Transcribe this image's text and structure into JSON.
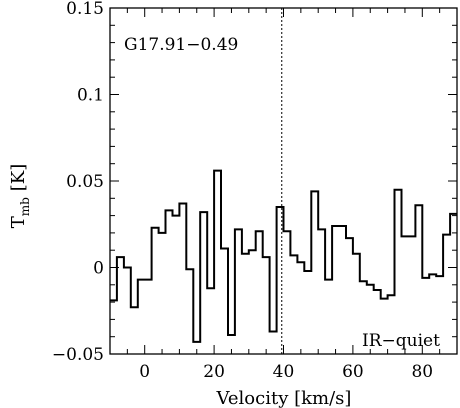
{
  "chart_data": {
    "type": "line",
    "step": true,
    "source_label": "G17.91−0.49",
    "class_label": "IR−quiet",
    "xlabel": "Velocity [km/s]",
    "ylabel_main": "T",
    "ylabel_sub": "mb",
    "ylabel_unit": "[K]",
    "xlim": [
      -10,
      90
    ],
    "ylim": [
      -0.05,
      0.15
    ],
    "x_ticks": [
      0,
      20,
      40,
      60,
      80
    ],
    "x_tick_labels": [
      "0",
      "20",
      "40",
      "60",
      "80"
    ],
    "y_ticks": [
      -0.05,
      0,
      0.05,
      0.1,
      0.15
    ],
    "y_tick_labels": [
      "−0.05",
      "0",
      "0.05",
      "0.1",
      "0.15"
    ],
    "reference_velocity": 39.5,
    "x": [
      -9.0,
      -7.0,
      -5.0,
      -3.0,
      -1.0,
      1.0,
      3.0,
      5.0,
      7.0,
      9.0,
      11.0,
      13.0,
      15.0,
      17.0,
      19.0,
      21.0,
      23.0,
      25.0,
      27.0,
      29.0,
      31.0,
      33.0,
      35.0,
      37.0,
      39.0,
      41.0,
      43.0,
      45.0,
      47.0,
      49.0,
      51.0,
      53.0,
      55.0,
      57.0,
      59.0,
      61.0,
      63.0,
      65.0,
      67.0,
      69.0,
      71.0,
      73.0,
      75.0,
      77.0,
      79.0,
      81.0,
      83.0,
      85.0,
      87.0,
      89.0
    ],
    "y": [
      -0.019,
      0.006,
      0.0,
      -0.023,
      -0.007,
      -0.007,
      0.023,
      0.02,
      0.033,
      0.03,
      0.037,
      -0.001,
      -0.043,
      0.032,
      -0.012,
      0.056,
      0.011,
      -0.039,
      0.022,
      0.008,
      0.01,
      0.021,
      0.006,
      -0.037,
      0.035,
      0.021,
      0.007,
      0.003,
      -0.002,
      0.044,
      0.022,
      -0.007,
      0.024,
      0.024,
      0.017,
      0.008,
      -0.008,
      -0.01,
      -0.013,
      -0.018,
      -0.016,
      0.045,
      0.018,
      0.018,
      0.036,
      -0.006,
      -0.004,
      -0.005,
      0.019,
      0.031
    ]
  }
}
